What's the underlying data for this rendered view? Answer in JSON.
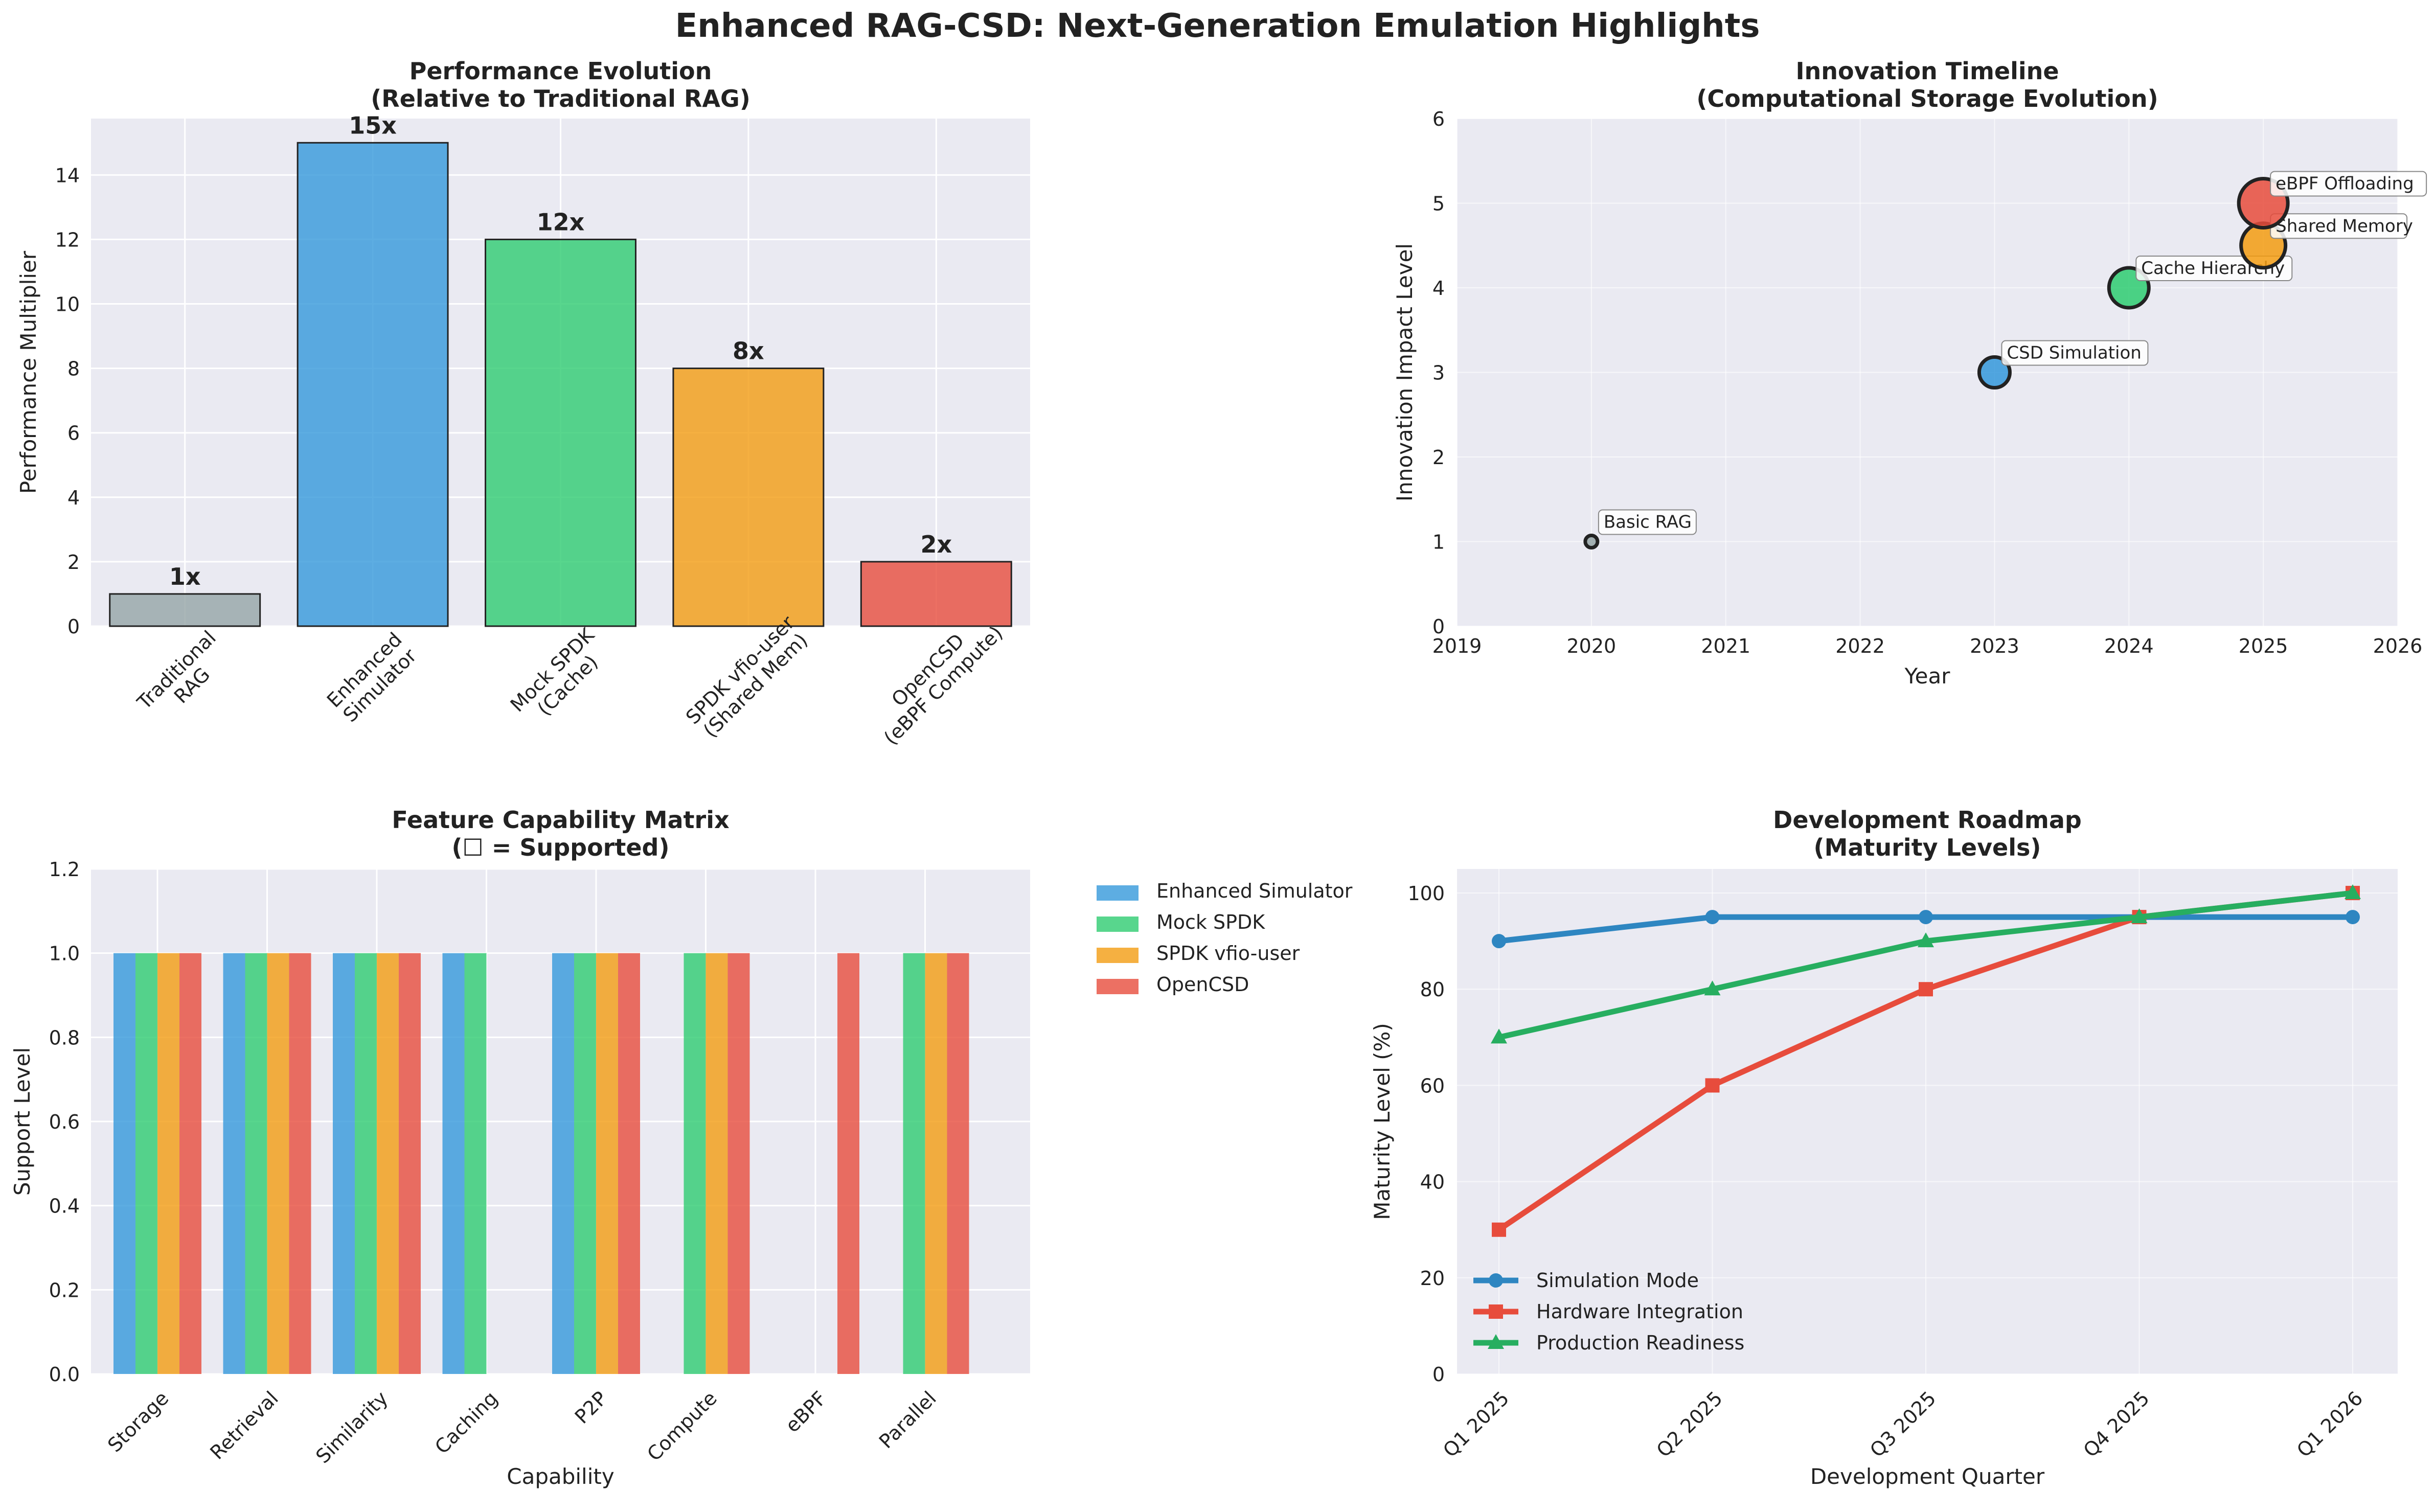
{
  "figure": {
    "title": "Enhanced RAG-CSD: Next-Generation Emulation Highlights"
  },
  "chart_data": [
    {
      "type": "bar",
      "title": "Performance Evolution\n(Relative to Traditional RAG)",
      "xlabel": "",
      "ylabel": "Performance Multiplier",
      "categories": [
        "Traditional\nRAG",
        "Enhanced\nSimulator",
        "Mock SPDK\n(Cache)",
        "SPDK vfio-user\n(Shared Mem)",
        "OpenCSD\n(eBPF Compute)"
      ],
      "values": [
        1,
        15,
        12,
        8,
        2
      ],
      "data_labels": [
        "1x",
        "15x",
        "12x",
        "8x",
        "2x"
      ],
      "colors": [
        "#95a5a6",
        "#3498db",
        "#2ecc71",
        "#f39c12",
        "#e74c3c"
      ],
      "ylim": [
        0,
        15.75
      ],
      "yticks": [
        0,
        2,
        4,
        6,
        8,
        10,
        12,
        14
      ],
      "grid": true
    },
    {
      "type": "scatter",
      "title": "Innovation Timeline\n(Computational Storage Evolution)",
      "xlabel": "Year",
      "ylabel": "Innovation Impact Level",
      "xlim": [
        2019,
        2026
      ],
      "ylim": [
        0,
        6
      ],
      "xticks": [
        2019,
        2020,
        2021,
        2022,
        2023,
        2024,
        2025,
        2026
      ],
      "yticks": [
        0,
        1,
        2,
        3,
        4,
        5,
        6
      ],
      "points": [
        {
          "x": 2020,
          "y": 1,
          "label": "Basic RAG",
          "color": "#95a5a6"
        },
        {
          "x": 2023,
          "y": 3,
          "label": "CSD Simulation",
          "color": "#3498db"
        },
        {
          "x": 2024,
          "y": 4,
          "label": "Cache Hierarchy",
          "color": "#2ecc71"
        },
        {
          "x": 2025,
          "y": 4.5,
          "label": "Shared Memory",
          "color": "#f39c12"
        },
        {
          "x": 2025,
          "y": 5,
          "label": "eBPF Offloading",
          "color": "#e74c3c"
        }
      ],
      "grid": true
    },
    {
      "type": "bar",
      "title": "Feature Capability Matrix\n(☐ = Supported)",
      "xlabel": "Capability",
      "ylabel": "Support Level",
      "categories": [
        "Storage",
        "Retrieval",
        "Similarity",
        "Caching",
        "P2P",
        "Compute",
        "eBPF",
        "Parallel"
      ],
      "series": [
        {
          "name": "Enhanced Simulator",
          "color": "#3498db",
          "values": [
            1,
            1,
            1,
            1,
            1,
            0,
            0,
            0
          ]
        },
        {
          "name": "Mock SPDK",
          "color": "#2ecc71",
          "values": [
            1,
            1,
            1,
            1,
            1,
            1,
            0,
            1
          ]
        },
        {
          "name": "SPDK vfio-user",
          "color": "#f39c12",
          "values": [
            1,
            1,
            1,
            0,
            1,
            1,
            0,
            1
          ]
        },
        {
          "name": "OpenCSD",
          "color": "#e74c3c",
          "values": [
            1,
            1,
            1,
            0,
            1,
            1,
            1,
            1
          ]
        }
      ],
      "ylim": [
        0,
        1.2
      ],
      "yticks": [
        "0.0",
        "0.2",
        "0.4",
        "0.6",
        "0.8",
        "1.0",
        "1.2"
      ],
      "legend": "outside-right",
      "grid": true
    },
    {
      "type": "line",
      "title": "Development Roadmap\n(Maturity Levels)",
      "xlabel": "Development Quarter",
      "ylabel": "Maturity Level (%)",
      "categories": [
        "Q1 2025",
        "Q2 2025",
        "Q3 2025",
        "Q4 2025",
        "Q1 2026"
      ],
      "series": [
        {
          "name": "Simulation Mode",
          "color": "#2e86c1",
          "marker": "circle",
          "values": [
            90,
            95,
            95,
            95,
            95
          ]
        },
        {
          "name": "Hardware Integration",
          "color": "#e74c3c",
          "marker": "square",
          "values": [
            30,
            60,
            80,
            95,
            100
          ]
        },
        {
          "name": "Production Readiness",
          "color": "#27ae60",
          "marker": "triangle",
          "values": [
            70,
            80,
            90,
            95,
            100
          ]
        }
      ],
      "ylim": [
        0,
        105
      ],
      "yticks": [
        0,
        20,
        40,
        60,
        80,
        100
      ],
      "legend": "lower-left",
      "grid": true
    }
  ]
}
